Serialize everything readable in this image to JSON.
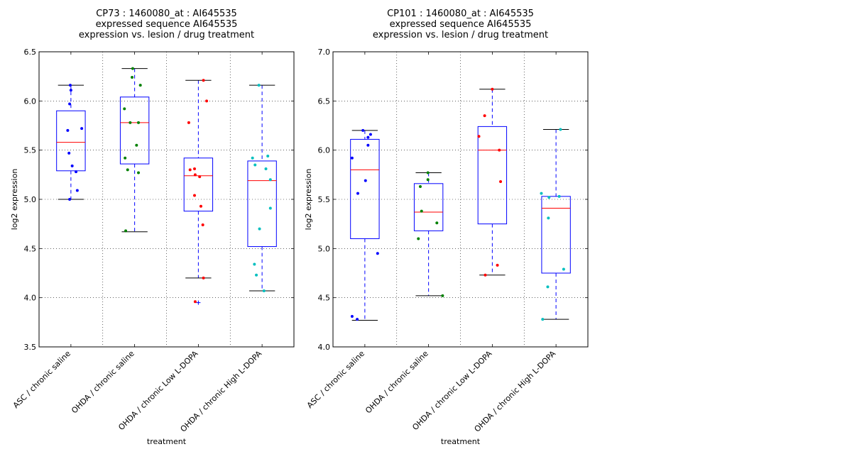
{
  "chart_data": [
    {
      "type": "box",
      "title_lines": [
        "CP73 : 1460080_at : AI645535",
        "expressed sequence AI645535",
        "expression vs. lesion / drug treatment"
      ],
      "xlabel": "treatment",
      "ylabel": "log2 expression",
      "ylim": [
        3.5,
        6.5
      ],
      "yticks": [
        "3.5",
        "4.0",
        "4.5",
        "5.0",
        "5.5",
        "6.0",
        "6.5"
      ],
      "grid": true,
      "categories": [
        "ASC / chronic saline",
        "OHDA / chronic saline",
        "OHDA / chronic Low L-DOPA",
        "OHDA / chronic High L-DOPA"
      ],
      "boxes": [
        {
          "color": "#0000ff",
          "whisker_low": 5.0,
          "q1": 5.29,
          "median": 5.58,
          "q3": 5.9,
          "whisker_high": 6.16,
          "fliers": [],
          "points": [
            [
              -0.01,
              6.16
            ],
            [
              0.0,
              6.11
            ],
            [
              -0.02,
              5.97
            ],
            [
              0.17,
              5.72
            ],
            [
              -0.05,
              5.7
            ],
            [
              -0.03,
              5.47
            ],
            [
              0.02,
              5.34
            ],
            [
              0.08,
              5.28
            ],
            [
              0.1,
              5.09
            ],
            [
              -0.02,
              5.0
            ]
          ]
        },
        {
          "color": "#008000",
          "whisker_low": 4.67,
          "q1": 5.36,
          "median": 5.78,
          "q3": 6.04,
          "whisker_high": 6.33,
          "fliers": [],
          "points": [
            [
              -0.03,
              6.33
            ],
            [
              -0.04,
              6.24
            ],
            [
              0.09,
              6.16
            ],
            [
              -0.16,
              5.92
            ],
            [
              -0.07,
              5.78
            ],
            [
              0.06,
              5.78
            ],
            [
              0.03,
              5.55
            ],
            [
              -0.15,
              5.42
            ],
            [
              -0.11,
              5.3
            ],
            [
              0.06,
              5.27
            ],
            [
              -0.14,
              4.68
            ]
          ]
        },
        {
          "color": "#ff0000",
          "whisker_low": 4.2,
          "q1": 4.88,
          "median": 5.24,
          "q3": 5.42,
          "whisker_high": 6.21,
          "fliers": [
            3.95
          ],
          "points": [
            [
              0.08,
              6.21
            ],
            [
              0.13,
              6.0
            ],
            [
              -0.15,
              5.78
            ],
            [
              -0.13,
              5.3
            ],
            [
              -0.06,
              5.31
            ],
            [
              -0.05,
              5.25
            ],
            [
              0.02,
              5.23
            ],
            [
              -0.06,
              5.04
            ],
            [
              0.04,
              4.93
            ],
            [
              0.07,
              4.74
            ],
            [
              0.08,
              4.2
            ],
            [
              -0.05,
              3.96
            ]
          ]
        },
        {
          "color": "#00bfbf",
          "whisker_low": 4.07,
          "q1": 4.52,
          "median": 5.19,
          "q3": 5.39,
          "whisker_high": 6.16,
          "fliers": [],
          "points": [
            [
              -0.05,
              6.16
            ],
            [
              -0.15,
              5.42
            ],
            [
              0.09,
              5.44
            ],
            [
              -0.11,
              5.35
            ],
            [
              0.06,
              5.31
            ],
            [
              0.13,
              5.2
            ],
            [
              0.13,
              4.91
            ],
            [
              -0.04,
              4.7
            ],
            [
              -0.12,
              4.34
            ],
            [
              -0.09,
              4.23
            ],
            [
              0.03,
              4.07
            ]
          ]
        }
      ]
    },
    {
      "type": "box",
      "title_lines": [
        "CP101 : 1460080_at : AI645535",
        "expressed sequence AI645535",
        "expression vs. lesion / drug treatment"
      ],
      "xlabel": "treatment",
      "ylabel": "log2 expression",
      "ylim": [
        4.0,
        7.0
      ],
      "yticks": [
        "4.0",
        "4.5",
        "5.0",
        "5.5",
        "6.0",
        "6.5",
        "7.0"
      ],
      "grid": true,
      "categories": [
        "ASC / chronic saline",
        "OHDA / chronic saline",
        "OHDA / chronic Low L-DOPA",
        "OHDA / chronic High L-DOPA"
      ],
      "boxes": [
        {
          "color": "#0000ff",
          "whisker_low": 4.27,
          "q1": 5.1,
          "median": 5.8,
          "q3": 6.11,
          "whisker_high": 6.2,
          "fliers": [],
          "points": [
            [
              -0.03,
              6.2
            ],
            [
              0.09,
              6.16
            ],
            [
              0.05,
              6.13
            ],
            [
              0.05,
              6.05
            ],
            [
              -0.2,
              5.92
            ],
            [
              0.01,
              5.69
            ],
            [
              -0.11,
              5.56
            ],
            [
              0.2,
              4.95
            ],
            [
              -0.2,
              4.31
            ],
            [
              -0.12,
              4.28
            ]
          ]
        },
        {
          "color": "#008000",
          "whisker_low": 4.52,
          "q1": 5.18,
          "median": 5.37,
          "q3": 5.66,
          "whisker_high": 5.77,
          "fliers": [],
          "points": [
            [
              -0.01,
              5.77
            ],
            [
              -0.01,
              5.7
            ],
            [
              -0.13,
              5.63
            ],
            [
              -0.11,
              5.38
            ],
            [
              0.13,
              5.26
            ],
            [
              -0.16,
              5.1
            ],
            [
              0.22,
              4.52
            ]
          ]
        },
        {
          "color": "#ff0000",
          "whisker_low": 4.73,
          "q1": 5.25,
          "median": 6.0,
          "q3": 6.24,
          "whisker_high": 6.62,
          "fliers": [],
          "points": [
            [
              0.0,
              6.62
            ],
            [
              -0.12,
              6.35
            ],
            [
              -0.21,
              6.14
            ],
            [
              0.11,
              6.0
            ],
            [
              0.13,
              5.68
            ],
            [
              0.08,
              4.83
            ],
            [
              -0.11,
              4.73
            ]
          ]
        },
        {
          "color": "#00bfbf",
          "whisker_low": 4.28,
          "q1": 4.75,
          "median": 5.41,
          "q3": 5.53,
          "whisker_high": 6.21,
          "fliers": [],
          "points": [
            [
              0.07,
              6.21
            ],
            [
              -0.23,
              5.56
            ],
            [
              -0.11,
              5.52
            ],
            [
              0.05,
              5.53
            ],
            [
              -0.12,
              5.31
            ],
            [
              0.12,
              4.79
            ],
            [
              -0.13,
              4.61
            ],
            [
              -0.21,
              4.28
            ]
          ]
        }
      ]
    }
  ]
}
